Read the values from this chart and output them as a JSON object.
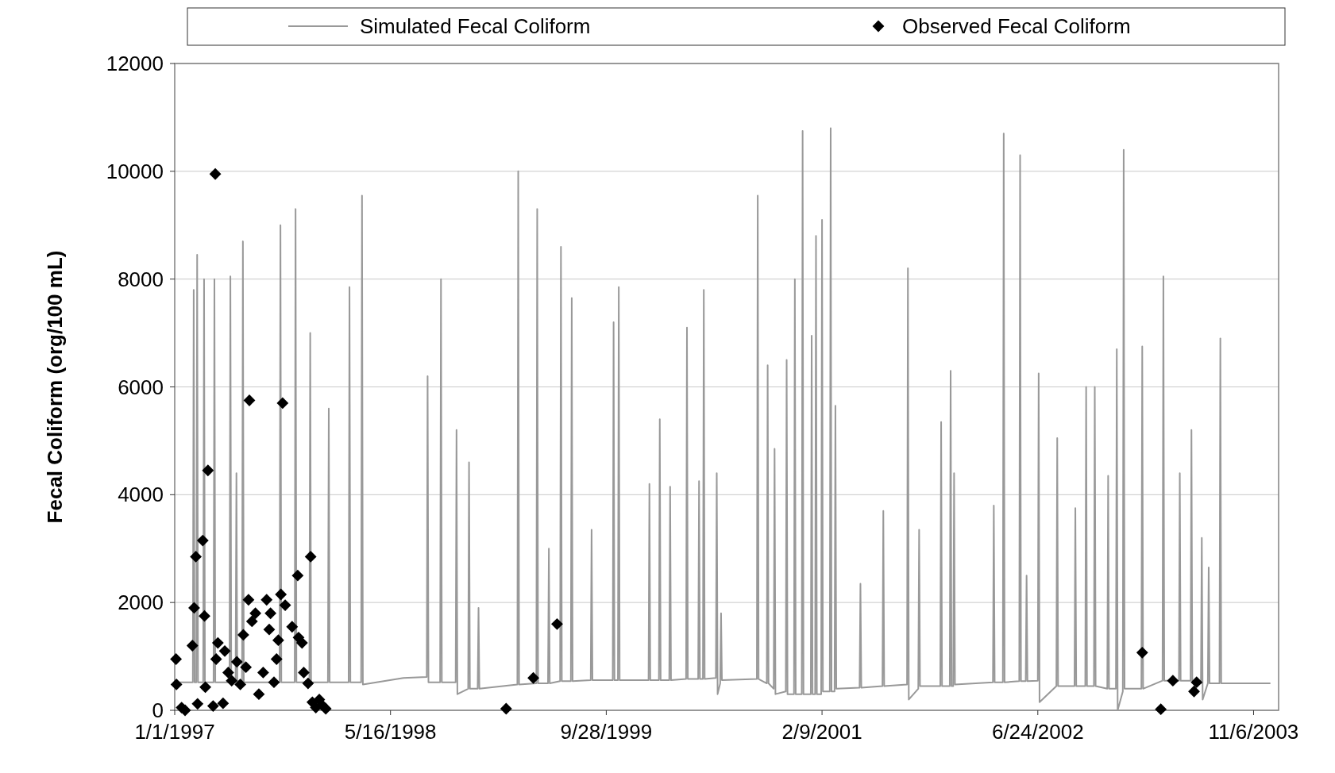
{
  "chart_data": {
    "type": "line",
    "ylabel": "Fecal Coliform (org/100 mL)",
    "xlim": [
      "1997-01-01",
      "2004-01-03"
    ],
    "xticks": [
      {
        "value": "1997-01-01",
        "label": "1/1/1997"
      },
      {
        "value": "1998-05-16",
        "label": "5/16/1998"
      },
      {
        "value": "1999-09-28",
        "label": "9/28/1999"
      },
      {
        "value": "2001-02-09",
        "label": "2/9/2001"
      },
      {
        "value": "2002-06-24",
        "label": "6/24/2002"
      },
      {
        "value": "2003-11-06",
        "label": "11/6/2003"
      }
    ],
    "ylim": [
      0,
      12000
    ],
    "yticks": [
      0,
      2000,
      4000,
      6000,
      8000,
      10000,
      12000
    ],
    "grid": "y",
    "legend": "top",
    "series": [
      {
        "name": "Simulated Fecal Coliform",
        "color": "#999999",
        "line_style": "solid",
        "x": [
          "1997-01-01",
          "1997-02-12",
          "1997-02-14",
          "1997-02-16",
          "1997-02-20",
          "1997-02-22",
          "1997-02-24",
          "1997-03-08",
          "1997-03-10",
          "1997-03-12",
          "1997-04-01",
          "1997-04-03",
          "1997-04-05",
          "1997-05-08",
          "1997-05-10",
          "1997-05-12",
          "1997-05-22",
          "1997-05-24",
          "1997-05-26",
          "1997-06-06",
          "1997-06-08",
          "1997-06-10",
          "1997-09-01",
          "1997-09-03",
          "1997-09-05",
          "1997-10-06",
          "1997-10-08",
          "1997-10-10",
          "1997-11-09",
          "1997-11-11",
          "1997-11-13",
          "1997-12-22",
          "1997-12-24",
          "1997-12-26",
          "1998-02-08",
          "1998-02-10",
          "1998-02-12",
          "1998-03-09",
          "1998-03-11",
          "1998-03-13",
          "1998-06-15",
          "1998-08-08",
          "1998-08-10",
          "1998-08-12",
          "1998-09-08",
          "1998-09-10",
          "1998-09-12",
          "1998-10-14",
          "1998-10-16",
          "1998-10-18",
          "1998-11-12",
          "1998-11-14",
          "1998-11-16",
          "1998-12-04",
          "1998-12-06",
          "1998-12-08",
          "1999-03-06",
          "1999-03-08",
          "1999-03-10",
          "1999-04-19",
          "1999-04-21",
          "1999-04-23",
          "1999-05-16",
          "1999-05-18",
          "1999-05-20",
          "1999-06-13",
          "1999-06-15",
          "1999-06-17",
          "1999-07-08",
          "1999-07-10",
          "1999-07-12",
          "1999-08-23",
          "1999-08-25",
          "1999-08-27",
          "1999-10-13",
          "1999-10-15",
          "1999-10-17",
          "1999-10-25",
          "1999-10-27",
          "1999-10-29",
          "2000-01-04",
          "2000-01-06",
          "2000-01-08",
          "2000-01-28",
          "2000-01-30",
          "2000-02-01",
          "2000-02-21",
          "2000-02-23",
          "2000-02-25",
          "2000-03-31",
          "2000-04-02",
          "2000-04-04",
          "2000-04-28",
          "2000-04-30",
          "2000-05-02",
          "2000-05-09",
          "2000-05-11",
          "2000-05-13",
          "2000-06-08",
          "2000-06-10",
          "2000-06-12",
          "2000-06-18",
          "2000-06-20",
          "2000-06-22",
          "2000-09-11",
          "2000-09-13",
          "2000-09-15",
          "2000-10-04",
          "2000-10-06",
          "2000-10-08",
          "2000-10-20",
          "2000-10-22",
          "2000-10-24",
          "2000-11-17",
          "2000-11-19",
          "2000-11-21",
          "2000-12-06",
          "2000-12-08",
          "2000-12-10",
          "2000-12-24",
          "2000-12-26",
          "2000-12-28",
          "2001-01-14",
          "2001-01-16",
          "2001-01-18",
          "2001-01-24",
          "2001-01-26",
          "2001-01-28",
          "2001-02-07",
          "2001-02-09",
          "2001-02-11",
          "2001-02-27",
          "2001-03-01",
          "2001-03-03",
          "2001-03-10",
          "2001-03-12",
          "2001-03-14",
          "2001-05-07",
          "2001-05-09",
          "2001-05-11",
          "2001-06-29",
          "2001-07-01",
          "2001-07-03",
          "2001-08-25",
          "2001-08-27",
          "2001-08-29",
          "2001-09-20",
          "2001-09-22",
          "2001-09-24",
          "2001-11-10",
          "2001-11-12",
          "2001-11-14",
          "2001-12-02",
          "2001-12-04",
          "2001-12-06",
          "2001-12-10",
          "2001-12-12",
          "2001-12-14",
          "2002-03-12",
          "2002-03-14",
          "2002-03-16",
          "2002-04-04",
          "2002-04-06",
          "2002-04-08",
          "2002-05-12",
          "2002-05-14",
          "2002-05-16",
          "2002-05-27",
          "2002-05-29",
          "2002-05-31",
          "2002-06-24",
          "2002-06-26",
          "2002-06-28",
          "2002-08-06",
          "2002-08-08",
          "2002-08-10",
          "2002-09-17",
          "2002-09-19",
          "2002-09-21",
          "2002-10-12",
          "2002-10-14",
          "2002-10-16",
          "2002-11-01",
          "2002-11-03",
          "2002-11-05",
          "2002-12-02",
          "2002-12-04",
          "2002-12-06",
          "2002-12-22",
          "2002-12-24",
          "2002-12-26",
          "2003-01-07",
          "2003-01-09",
          "2003-01-11",
          "2003-02-19",
          "2003-02-21",
          "2003-02-23",
          "2003-04-09",
          "2003-04-11",
          "2003-04-13",
          "2003-05-17",
          "2003-05-19",
          "2003-05-21",
          "2003-06-13",
          "2003-06-15",
          "2003-06-17",
          "2003-07-07",
          "2003-07-09",
          "2003-07-11",
          "2003-07-23",
          "2003-07-25",
          "2003-07-27",
          "2003-08-19",
          "2003-08-21",
          "2003-08-23",
          "2003-12-15"
        ],
        "values": [
          520,
          520,
          7800,
          520,
          520,
          8450,
          520,
          520,
          8000,
          520,
          520,
          8000,
          520,
          520,
          8050,
          520,
          520,
          4400,
          520,
          520,
          8700,
          520,
          520,
          9000,
          520,
          520,
          9300,
          520,
          520,
          7000,
          520,
          520,
          5600,
          520,
          520,
          7850,
          520,
          520,
          9550,
          480,
          600,
          620,
          6200,
          520,
          520,
          8000,
          520,
          520,
          5200,
          300,
          400,
          4600,
          400,
          400,
          1900,
          400,
          480,
          10000,
          480,
          500,
          9300,
          500,
          500,
          3000,
          500,
          540,
          8600,
          540,
          540,
          7650,
          540,
          560,
          3350,
          560,
          560,
          7200,
          560,
          560,
          7850,
          560,
          560,
          4200,
          560,
          560,
          5400,
          560,
          560,
          4150,
          560,
          580,
          7100,
          580,
          580,
          4250,
          580,
          580,
          7800,
          580,
          600,
          4400,
          300,
          500,
          1800,
          560,
          580,
          9550,
          580,
          500,
          6400,
          500,
          400,
          4850,
          300,
          350,
          6500,
          300,
          300,
          8000,
          300,
          300,
          10750,
          300,
          300,
          6950,
          300,
          300,
          8800,
          300,
          300,
          9100,
          350,
          350,
          10800,
          350,
          350,
          5650,
          400,
          420,
          2350,
          420,
          450,
          3700,
          450,
          480,
          8200,
          200,
          400,
          3350,
          450,
          450,
          5350,
          450,
          450,
          6300,
          450,
          450,
          4400,
          480,
          520,
          3800,
          520,
          520,
          10700,
          520,
          540,
          10300,
          540,
          540,
          2500,
          540,
          550,
          6250,
          150,
          450,
          5050,
          450,
          450,
          3750,
          450,
          450,
          6000,
          450,
          450,
          6000,
          450,
          400,
          4350,
          400,
          400,
          6700,
          0,
          350,
          10400,
          400,
          400,
          6750,
          400,
          550,
          8050,
          550,
          550,
          4400,
          550,
          550,
          5200,
          550,
          500,
          3200,
          200,
          500,
          2650,
          500,
          500,
          6900,
          500,
          500
        ]
      },
      {
        "name": "Observed Fecal Coliform",
        "type": "scatter",
        "color": "#000000",
        "marker": "diamond",
        "x": [
          "1997-01-04",
          "1997-01-05",
          "1997-01-17",
          "1997-01-25",
          "1997-02-11",
          "1997-02-15",
          "1997-02-19",
          "1997-02-23",
          "1997-03-07",
          "1997-03-11",
          "1997-03-13",
          "1997-03-19",
          "1997-03-31",
          "1997-04-05",
          "1997-04-07",
          "1997-04-11",
          "1997-04-23",
          "1997-04-27",
          "1997-05-05",
          "1997-05-13",
          "1997-05-25",
          "1997-06-02",
          "1997-06-09",
          "1997-06-15",
          "1997-06-21",
          "1997-06-23",
          "1997-06-29",
          "1997-07-07",
          "1997-07-15",
          "1997-07-25",
          "1997-08-02",
          "1997-08-08",
          "1997-08-11",
          "1997-08-19",
          "1997-08-25",
          "1997-08-29",
          "1997-09-04",
          "1997-09-08",
          "1997-09-14",
          "1997-09-30",
          "1997-10-13",
          "1997-10-15",
          "1997-10-23",
          "1997-10-27",
          "1997-11-06",
          "1997-11-12",
          "1997-11-16",
          "1997-11-24",
          "1997-12-02",
          "1997-12-08",
          "1997-12-17",
          "1999-02-08",
          "1999-04-12",
          "1999-06-06",
          "2003-02-21",
          "2003-04-05",
          "2003-05-03",
          "2003-06-21",
          "2003-06-27"
        ],
        "values": [
          950,
          480,
          50,
          0,
          1200,
          1900,
          2850,
          120,
          3150,
          1750,
          430,
          4450,
          80,
          9950,
          950,
          1250,
          130,
          1100,
          700,
          550,
          900,
          480,
          1400,
          800,
          2050,
          5750,
          1650,
          1800,
          300,
          700,
          2050,
          1500,
          1800,
          520,
          950,
          1300,
          2150,
          5700,
          1950,
          1550,
          2500,
          1350,
          1250,
          700,
          500,
          2850,
          150,
          50,
          200,
          100,
          30,
          30,
          600,
          1600,
          1070,
          20,
          550,
          350,
          520
        ]
      }
    ]
  }
}
